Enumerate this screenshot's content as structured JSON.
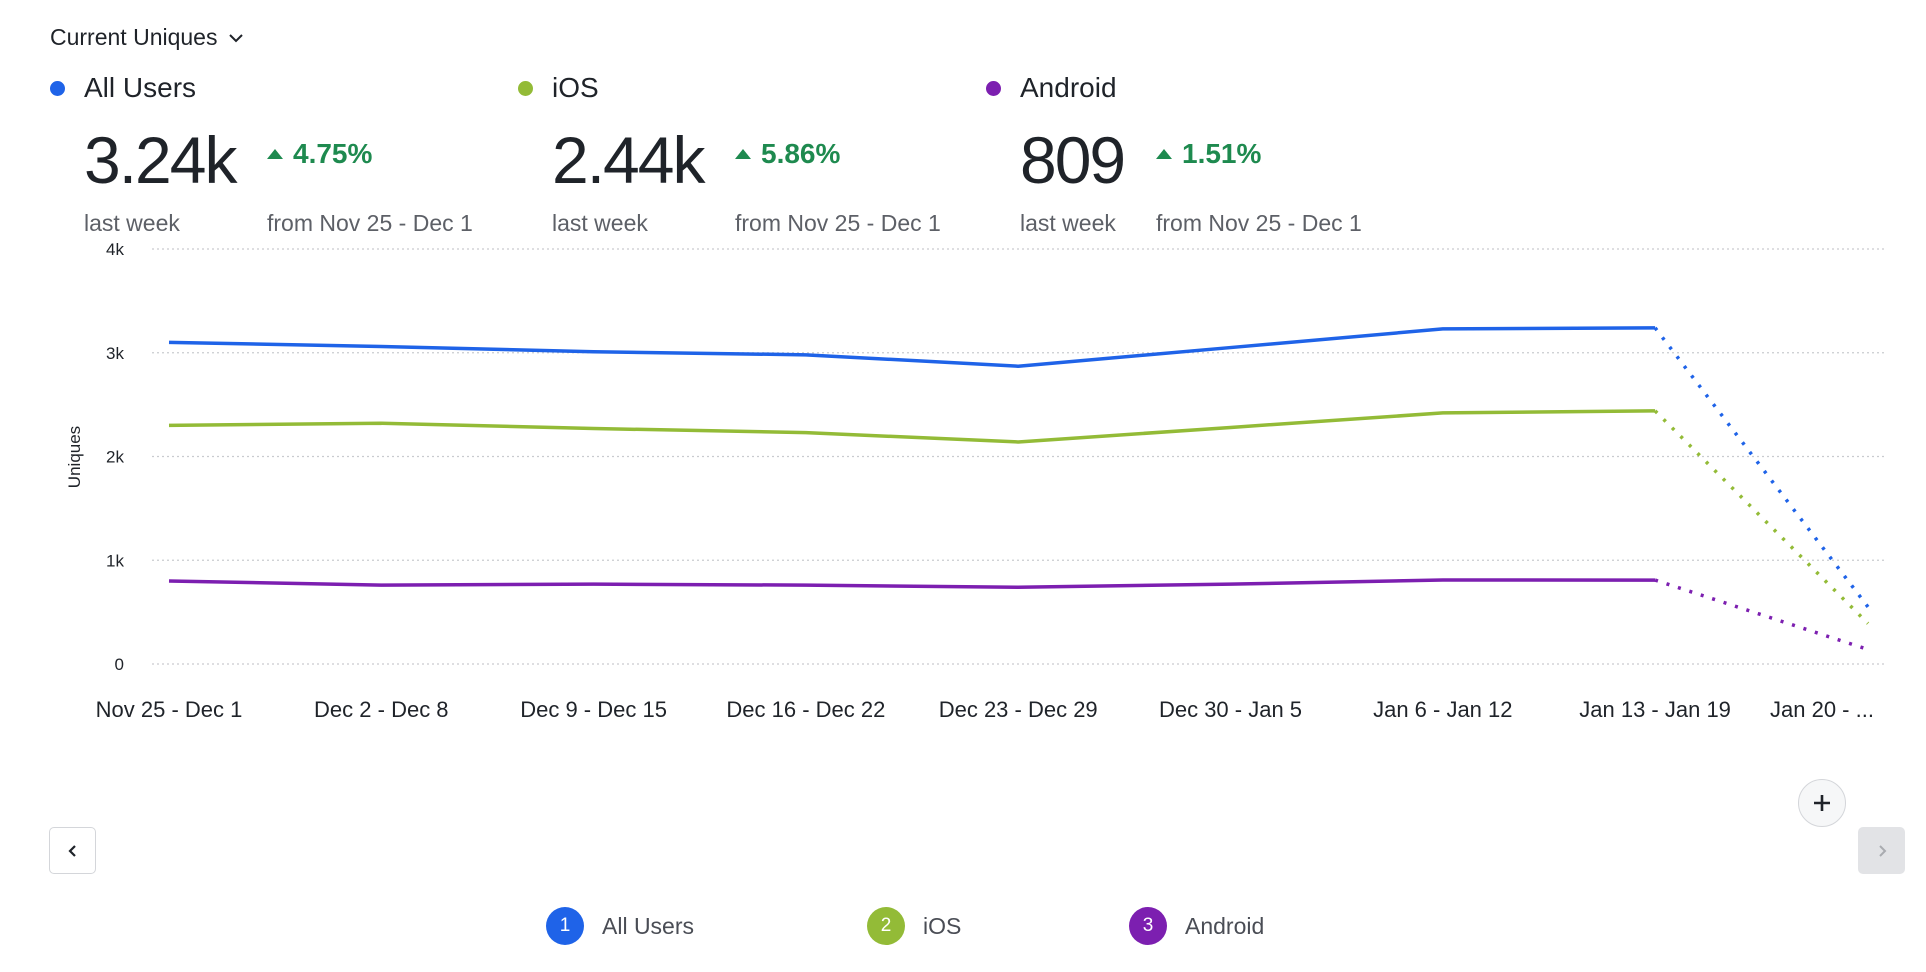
{
  "header": {
    "title": "Current Uniques"
  },
  "metrics": [
    {
      "name": "All Users",
      "value": "3.24k",
      "period": "last week",
      "change": "4.75%",
      "from": "from Nov 25 - Dec 1",
      "color": "#1f63e8"
    },
    {
      "name": "iOS",
      "value": "2.44k",
      "period": "last week",
      "change": "5.86%",
      "from": "from Nov 25 - Dec 1",
      "color": "#93bb37"
    },
    {
      "name": "Android",
      "value": "809",
      "period": "last week",
      "change": "1.51%",
      "from": "from Nov 25 - Dec 1",
      "color": "#7c1fb0"
    }
  ],
  "legend": [
    {
      "num": "1",
      "label": "All Users"
    },
    {
      "num": "2",
      "label": "iOS"
    },
    {
      "num": "3",
      "label": "Android"
    }
  ],
  "chart_data": {
    "type": "line",
    "ylabel": "Uniques",
    "xlabel": "",
    "ylim": [
      0,
      4000
    ],
    "yticks": [
      0,
      1000,
      2000,
      3000,
      4000
    ],
    "ytick_labels": [
      "0",
      "1k",
      "2k",
      "3k",
      "4k"
    ],
    "grid": true,
    "categories": [
      "Nov 25 - Dec 1",
      "Dec 2 - Dec 8",
      "Dec 9 - Dec 15",
      "Dec 16 - Dec 22",
      "Dec 23 - Dec 29",
      "Dec 30 - Jan 5",
      "Jan 6 - Jan 12",
      "Jan 13 - Jan 19",
      "Jan 20 - ..."
    ],
    "incomplete_last_period": true,
    "series": [
      {
        "name": "All Users",
        "color": "#1f63e8",
        "values": [
          3100,
          3060,
          3010,
          2980,
          2870,
          3050,
          3230,
          3240,
          550
        ]
      },
      {
        "name": "iOS",
        "color": "#93bb37",
        "values": [
          2300,
          2320,
          2270,
          2230,
          2140,
          2280,
          2420,
          2440,
          390
        ]
      },
      {
        "name": "Android",
        "color": "#7c1fb0",
        "values": [
          800,
          760,
          770,
          760,
          740,
          770,
          810,
          809,
          140
        ]
      }
    ]
  }
}
